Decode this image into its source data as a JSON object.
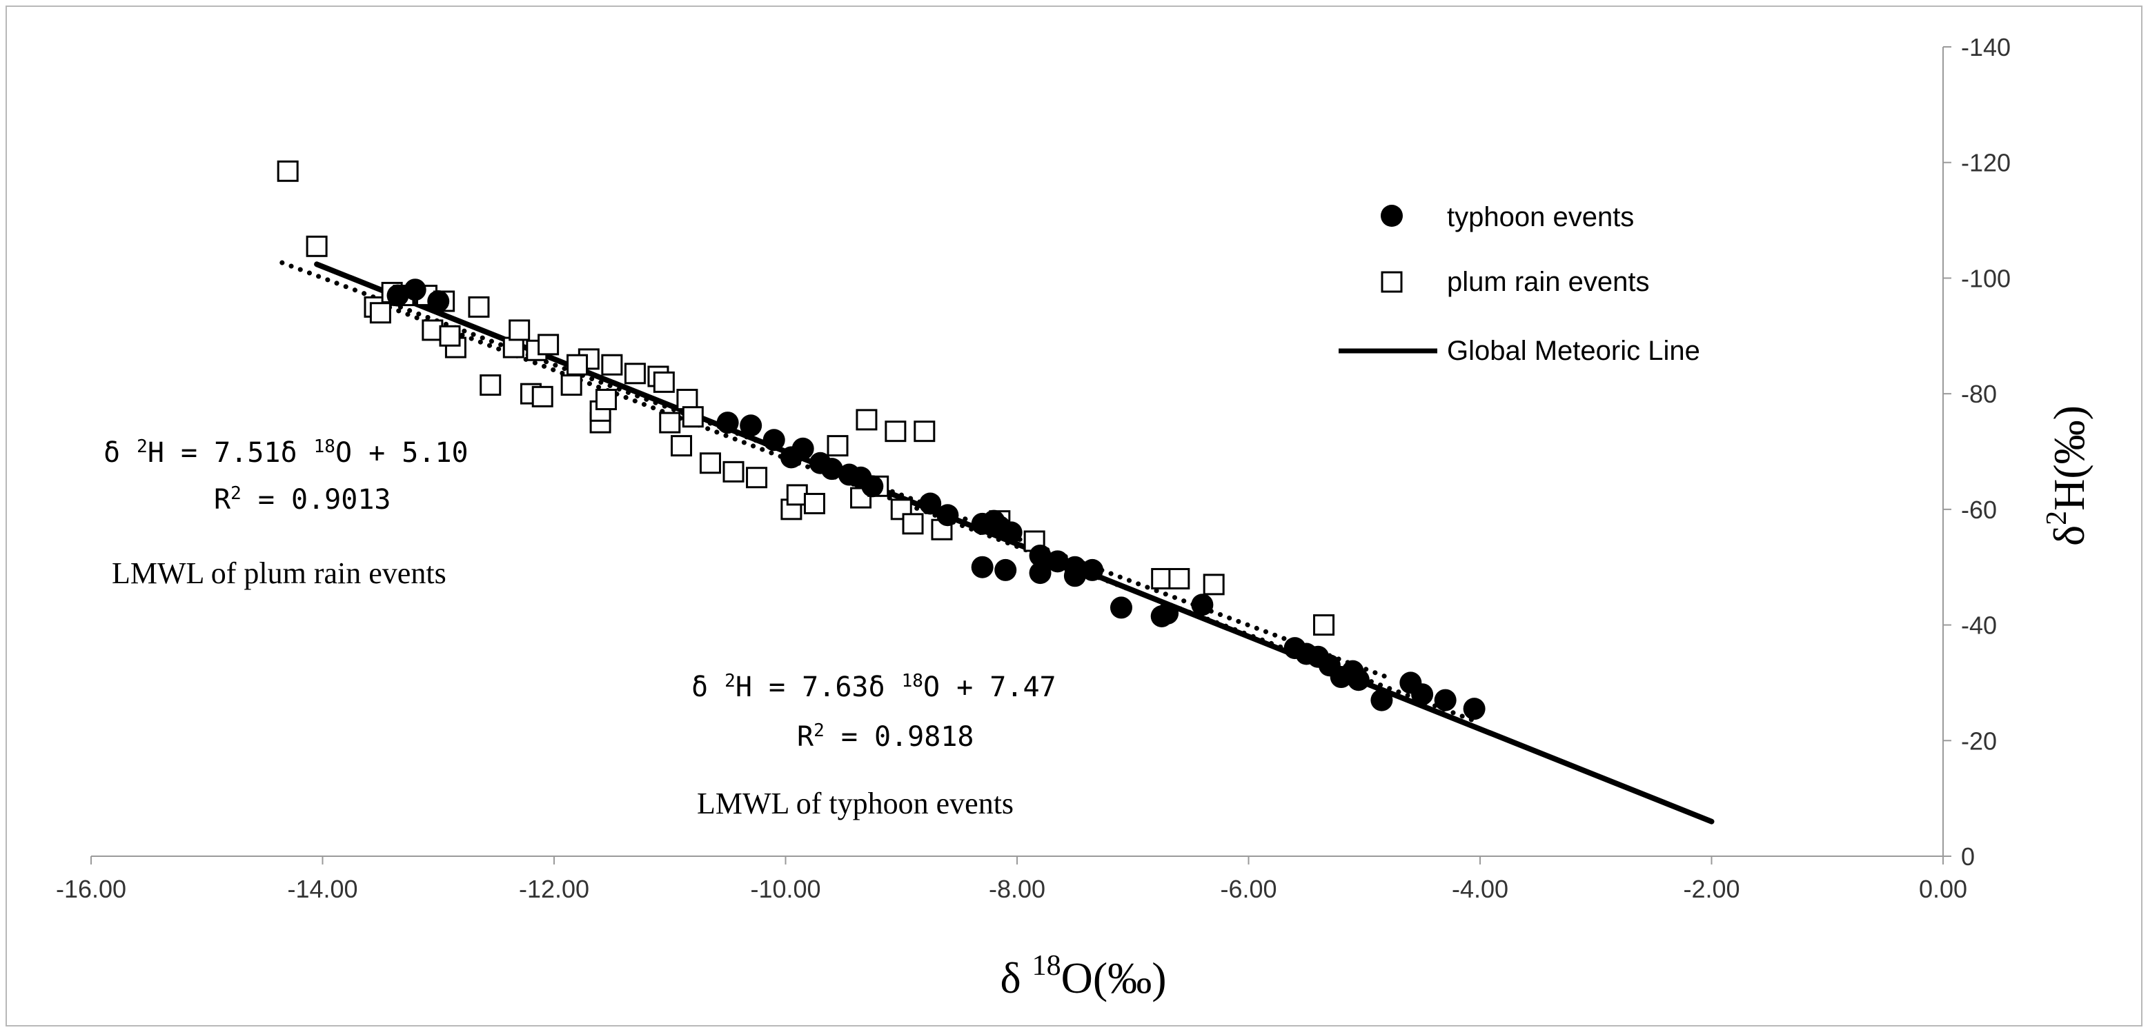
{
  "chart_data": {
    "type": "scatter",
    "title": "",
    "xlabel": "δ 18O(‰)",
    "xlabel_parts": {
      "symbol": "δ ",
      "sup": "18",
      "rest": "O(‰)"
    },
    "ylabel": "δ2H(‰)",
    "ylabel_parts": {
      "symbol": "δ",
      "sup": "2",
      "rest": "H(‰)"
    },
    "xlim": [
      -16,
      0
    ],
    "ylim": [
      0,
      -140
    ],
    "x_ticks": [
      -16,
      -14,
      -12,
      -10,
      -8,
      -6,
      -4,
      -2,
      0
    ],
    "x_tick_labels": [
      "-16.00",
      "-14.00",
      "-12.00",
      "-10.00",
      "-8.00",
      "-6.00",
      "-4.00",
      "-2.00",
      "0.00"
    ],
    "y_ticks": [
      0,
      -20,
      -40,
      -60,
      -80,
      -100,
      -120,
      -140
    ],
    "y_tick_labels": [
      "0",
      "-20",
      "-40",
      "-60",
      "-80",
      "-100",
      "-120",
      "-140"
    ],
    "y_axis_position": "right",
    "legend": {
      "position": "top-right",
      "entries": [
        {
          "label": "typhoon events",
          "marker": "filled-circle"
        },
        {
          "label": "plum rain events",
          "marker": "open-square"
        },
        {
          "label": "Global Meteoric Line",
          "marker": "solid-line"
        }
      ]
    },
    "series": [
      {
        "name": "typhoon events",
        "marker": "filled-circle",
        "points": [
          [
            -13.35,
            -97
          ],
          [
            -13.2,
            -98
          ],
          [
            -13.0,
            -96
          ],
          [
            -10.5,
            -75
          ],
          [
            -10.3,
            -74.5
          ],
          [
            -10.1,
            -72
          ],
          [
            -9.95,
            -69
          ],
          [
            -9.85,
            -70.5
          ],
          [
            -9.7,
            -68
          ],
          [
            -9.6,
            -67
          ],
          [
            -9.45,
            -66
          ],
          [
            -9.35,
            -65.5
          ],
          [
            -9.25,
            -64
          ],
          [
            -8.75,
            -61
          ],
          [
            -8.6,
            -59
          ],
          [
            -8.3,
            -57.5
          ],
          [
            -8.2,
            -58
          ],
          [
            -8.15,
            -57
          ],
          [
            -8.05,
            -56
          ],
          [
            -8.3,
            -50
          ],
          [
            -8.1,
            -49.5
          ],
          [
            -7.8,
            -52
          ],
          [
            -7.65,
            -51
          ],
          [
            -7.5,
            -50
          ],
          [
            -7.35,
            -49.5
          ],
          [
            -7.8,
            -49
          ],
          [
            -7.5,
            -48.5
          ],
          [
            -7.1,
            -43
          ],
          [
            -6.75,
            -41.5
          ],
          [
            -6.7,
            -42
          ],
          [
            -6.4,
            -43.5
          ],
          [
            -5.6,
            -36
          ],
          [
            -5.5,
            -35
          ],
          [
            -5.4,
            -34.5
          ],
          [
            -5.3,
            -33
          ],
          [
            -5.2,
            -31
          ],
          [
            -5.1,
            -32
          ],
          [
            -5.05,
            -30.5
          ],
          [
            -4.85,
            -27
          ],
          [
            -4.6,
            -30
          ],
          [
            -4.5,
            -28
          ],
          [
            -4.3,
            -27
          ],
          [
            -4.05,
            -25.5
          ]
        ]
      },
      {
        "name": "plum rain events",
        "marker": "open-square",
        "points": [
          [
            -14.3,
            -118.5
          ],
          [
            -14.05,
            -105.5
          ],
          [
            -13.55,
            -95
          ],
          [
            -13.5,
            -94
          ],
          [
            -13.4,
            -97.5
          ],
          [
            -13.3,
            -97
          ],
          [
            -13.1,
            -97
          ],
          [
            -13.05,
            -91
          ],
          [
            -12.95,
            -96
          ],
          [
            -12.85,
            -88
          ],
          [
            -12.9,
            -90
          ],
          [
            -12.65,
            -95
          ],
          [
            -12.55,
            -81.5
          ],
          [
            -12.35,
            -88
          ],
          [
            -12.3,
            -91
          ],
          [
            -12.2,
            -80
          ],
          [
            -12.1,
            -79.5
          ],
          [
            -12.15,
            -87.5
          ],
          [
            -12.05,
            -88.5
          ],
          [
            -11.85,
            -81.5
          ],
          [
            -11.7,
            -86
          ],
          [
            -11.8,
            -85
          ],
          [
            -11.6,
            -75
          ],
          [
            -11.6,
            -77
          ],
          [
            -11.55,
            -79
          ],
          [
            -11.5,
            -85
          ],
          [
            -11.3,
            -83.5
          ],
          [
            -11.1,
            -83
          ],
          [
            -11.05,
            -82
          ],
          [
            -11.0,
            -75
          ],
          [
            -10.9,
            -71
          ],
          [
            -10.85,
            -79
          ],
          [
            -10.8,
            -76
          ],
          [
            -10.65,
            -68
          ],
          [
            -10.45,
            -66.5
          ],
          [
            -10.25,
            -65.5
          ],
          [
            -9.95,
            -60
          ],
          [
            -9.9,
            -62.5
          ],
          [
            -9.75,
            -61
          ],
          [
            -9.55,
            -71
          ],
          [
            -9.3,
            -75.5
          ],
          [
            -9.35,
            -62
          ],
          [
            -9.2,
            -64
          ],
          [
            -9.05,
            -73.5
          ],
          [
            -9.0,
            -60
          ],
          [
            -8.9,
            -57.5
          ],
          [
            -8.8,
            -73.5
          ],
          [
            -8.65,
            -56.5
          ],
          [
            -8.15,
            -58
          ],
          [
            -7.85,
            -54.5
          ],
          [
            -6.75,
            -48
          ],
          [
            -6.6,
            -48
          ],
          [
            -6.3,
            -47
          ],
          [
            -5.35,
            -40
          ]
        ]
      }
    ],
    "lines": [
      {
        "name": "Global Meteoric Line",
        "style": "solid",
        "slope": 8,
        "intercept": 10,
        "x_range": [
          -14.05,
          -2.0
        ]
      },
      {
        "name": "LMWL of plum rain events",
        "style": "dotted",
        "slope": 7.51,
        "intercept": 5.1,
        "x_range": [
          -14.35,
          -4.8
        ]
      },
      {
        "name": "LMWL of typhoon events",
        "style": "dotted",
        "slope": 7.63,
        "intercept": 7.47,
        "x_range": [
          -13.5,
          -4.0
        ]
      }
    ],
    "annotations": [
      {
        "id": "plum",
        "equation_lhs": "δ ",
        "eq_sup1": "2",
        "eq_mid": "H = 7.51δ ",
        "eq_sup2": "18",
        "eq_rest": "O + 5.10",
        "r2_lhs": "R",
        "r2_sup": "2",
        "r2_rest": " = 0.9013",
        "label": "LMWL of plum rain events"
      },
      {
        "id": "typhoon",
        "equation_lhs": "δ ",
        "eq_sup1": "2",
        "eq_mid": "H = 7.63δ ",
        "eq_sup2": "18",
        "eq_rest": "O + 7.47",
        "r2_lhs": "R",
        "r2_sup": "2",
        "r2_rest": " = 0.9818",
        "label": "LMWL of typhoon events"
      }
    ]
  }
}
